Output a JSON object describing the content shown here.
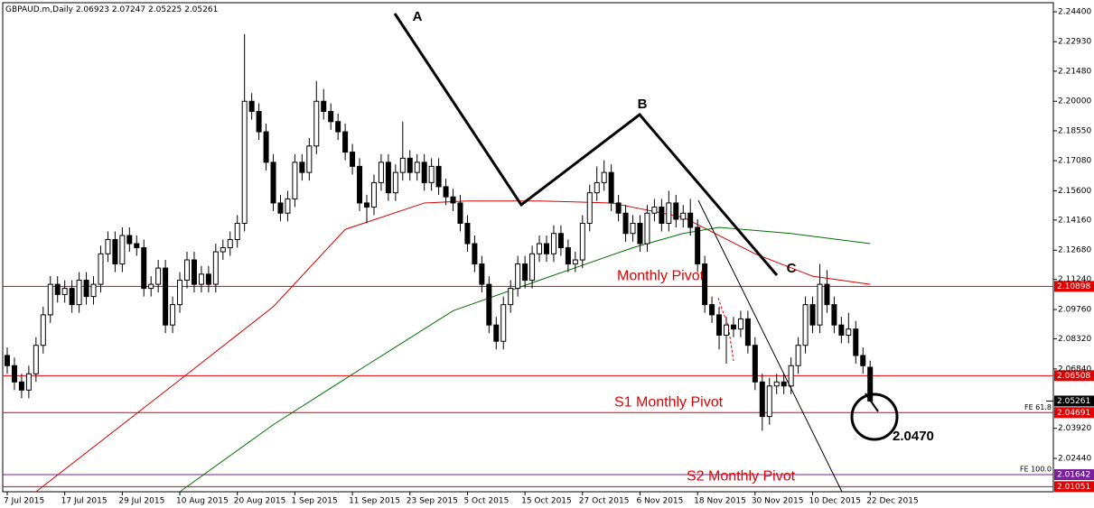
{
  "chart_data": {
    "type": "candlestick",
    "symbol": "GBPAUD.m,Daily",
    "ylim": [
      2.008,
      2.2498
    ],
    "yticks": [
      {
        "value": 2.244,
        "label": "2.24400"
      },
      {
        "value": 2.2293,
        "label": "2.22930"
      },
      {
        "value": 2.2148,
        "label": "2.21480"
      },
      {
        "value": 2.2,
        "label": "2.20000"
      },
      {
        "value": 2.1855,
        "label": "2.18550"
      },
      {
        "value": 2.1708,
        "label": "2.17080"
      },
      {
        "value": 2.156,
        "label": "2.15600"
      },
      {
        "value": 2.1416,
        "label": "2.14160"
      },
      {
        "value": 2.1268,
        "label": "2.12680"
      },
      {
        "value": 2.1124,
        "label": "2.11240"
      },
      {
        "value": 2.0976,
        "label": "2.09760"
      },
      {
        "value": 2.0832,
        "label": "2.08320"
      },
      {
        "value": 2.0684,
        "label": "2.06840"
      },
      {
        "value": 2.0392,
        "label": "2.03920"
      },
      {
        "value": 2.0244,
        "label": "2.02440"
      }
    ],
    "categories": [
      "7 Jul 2015",
      null,
      null,
      null,
      null,
      null,
      null,
      null,
      "17 Jul 2015",
      null,
      null,
      null,
      null,
      null,
      null,
      null,
      "29 Jul 2015",
      null,
      null,
      null,
      null,
      null,
      null,
      null,
      "10 Aug 2015",
      null,
      null,
      null,
      null,
      null,
      null,
      null,
      "20 Aug 2015",
      null,
      null,
      null,
      null,
      null,
      null,
      null,
      "1 Sep 2015",
      null,
      null,
      null,
      null,
      null,
      null,
      null,
      "11 Sep 2015",
      null,
      null,
      null,
      null,
      null,
      null,
      null,
      "23 Sep 2015",
      null,
      null,
      null,
      null,
      null,
      null,
      null,
      "5 Oct 2015",
      null,
      null,
      null,
      null,
      null,
      null,
      null,
      "15 Oct 2015",
      null,
      null,
      null,
      null,
      null,
      null,
      null,
      "27 Oct 2015",
      null,
      null,
      null,
      null,
      null,
      null,
      null,
      "6 Nov 2015",
      null,
      null,
      null,
      null,
      null,
      null,
      null,
      "18 Nov 2015",
      null,
      null,
      null,
      null,
      null,
      null,
      null,
      "30 Nov 2015",
      null,
      null,
      null,
      null,
      null,
      null,
      null,
      "10 Dec 2015",
      null,
      null,
      null,
      null,
      null,
      null,
      null,
      "22 Dec 2015"
    ],
    "candles": [
      [
        2.075,
        2.079,
        2.066,
        2.07
      ],
      [
        2.07,
        2.074,
        2.058,
        2.062
      ],
      [
        2.062,
        2.066,
        2.054,
        2.058
      ],
      [
        2.058,
        2.07,
        2.054,
        2.066
      ],
      [
        2.066,
        2.084,
        2.062,
        2.08
      ],
      [
        2.08,
        2.099,
        2.076,
        2.095
      ],
      [
        2.095,
        2.114,
        2.091,
        2.11
      ],
      [
        2.11,
        2.114,
        2.101,
        2.105
      ],
      [
        2.105,
        2.112,
        2.101,
        2.108
      ],
      [
        2.108,
        2.112,
        2.096,
        2.1
      ],
      [
        2.1,
        2.116,
        2.096,
        2.112
      ],
      [
        2.112,
        2.116,
        2.1,
        2.104
      ],
      [
        2.104,
        2.114,
        2.1,
        2.11
      ],
      [
        2.11,
        2.129,
        2.106,
        2.125
      ],
      [
        2.125,
        2.136,
        2.121,
        2.132
      ],
      [
        2.132,
        2.136,
        2.116,
        2.12
      ],
      [
        2.12,
        2.138,
        2.116,
        2.134
      ],
      [
        2.134,
        2.138,
        2.126,
        2.13
      ],
      [
        2.13,
        2.134,
        2.124,
        2.128
      ],
      [
        2.128,
        2.132,
        2.104,
        2.108
      ],
      [
        2.108,
        2.114,
        2.104,
        2.11
      ],
      [
        2.11,
        2.122,
        2.106,
        2.118
      ],
      [
        2.118,
        2.122,
        2.086,
        2.09
      ],
      [
        2.09,
        2.104,
        2.086,
        2.1
      ],
      [
        2.1,
        2.116,
        2.096,
        2.112
      ],
      [
        2.112,
        2.126,
        2.108,
        2.122
      ],
      [
        2.122,
        2.126,
        2.106,
        2.11
      ],
      [
        2.11,
        2.119,
        2.106,
        2.115
      ],
      [
        2.115,
        2.119,
        2.106,
        2.11
      ],
      [
        2.11,
        2.13,
        2.106,
        2.126
      ],
      [
        2.126,
        2.132,
        2.122,
        2.128
      ],
      [
        2.128,
        2.136,
        2.124,
        2.132
      ],
      [
        2.132,
        2.144,
        2.128,
        2.14
      ],
      [
        2.14,
        2.233,
        2.136,
        2.2
      ],
      [
        2.2,
        2.204,
        2.191,
        2.195
      ],
      [
        2.195,
        2.199,
        2.181,
        2.185
      ],
      [
        2.185,
        2.189,
        2.166,
        2.17
      ],
      [
        2.17,
        2.174,
        2.146,
        2.15
      ],
      [
        2.15,
        2.154,
        2.141,
        2.145
      ],
      [
        2.145,
        2.156,
        2.141,
        2.152
      ],
      [
        2.152,
        2.174,
        2.148,
        2.17
      ],
      [
        2.17,
        2.174,
        2.161,
        2.165
      ],
      [
        2.165,
        2.182,
        2.161,
        2.178
      ],
      [
        2.178,
        2.21,
        2.174,
        2.2
      ],
      [
        2.2,
        2.206,
        2.191,
        2.195
      ],
      [
        2.195,
        2.199,
        2.186,
        2.19
      ],
      [
        2.19,
        2.194,
        2.181,
        2.185
      ],
      [
        2.185,
        2.189,
        2.171,
        2.175
      ],
      [
        2.175,
        2.179,
        2.164,
        2.168
      ],
      [
        2.168,
        2.172,
        2.146,
        2.15
      ],
      [
        2.15,
        2.154,
        2.14,
        2.148
      ],
      [
        2.148,
        2.164,
        2.144,
        2.16
      ],
      [
        2.16,
        2.174,
        2.156,
        2.17
      ],
      [
        2.17,
        2.174,
        2.151,
        2.155
      ],
      [
        2.155,
        2.169,
        2.151,
        2.165
      ],
      [
        2.165,
        2.19,
        2.161,
        2.172
      ],
      [
        2.172,
        2.176,
        2.161,
        2.165
      ],
      [
        2.165,
        2.174,
        2.161,
        2.17
      ],
      [
        2.17,
        2.174,
        2.156,
        2.16
      ],
      [
        2.16,
        2.172,
        2.156,
        2.168
      ],
      [
        2.168,
        2.172,
        2.154,
        2.158
      ],
      [
        2.158,
        2.162,
        2.149,
        2.153
      ],
      [
        2.153,
        2.157,
        2.146,
        2.15
      ],
      [
        2.15,
        2.154,
        2.136,
        2.14
      ],
      [
        2.14,
        2.144,
        2.126,
        2.13
      ],
      [
        2.13,
        2.134,
        2.116,
        2.12
      ],
      [
        2.12,
        2.124,
        2.106,
        2.11
      ],
      [
        2.11,
        2.114,
        2.086,
        2.09
      ],
      [
        2.09,
        2.094,
        2.078,
        2.082
      ],
      [
        2.082,
        2.104,
        2.078,
        2.1
      ],
      [
        2.1,
        2.112,
        2.096,
        2.108
      ],
      [
        2.108,
        2.124,
        2.104,
        2.12
      ],
      [
        2.12,
        2.124,
        2.108,
        2.112
      ],
      [
        2.112,
        2.129,
        2.108,
        2.125
      ],
      [
        2.125,
        2.134,
        2.121,
        2.13
      ],
      [
        2.13,
        2.134,
        2.121,
        2.125
      ],
      [
        2.125,
        2.139,
        2.121,
        2.135
      ],
      [
        2.135,
        2.139,
        2.124,
        2.128
      ],
      [
        2.128,
        2.132,
        2.116,
        2.12
      ],
      [
        2.12,
        2.126,
        2.116,
        2.122
      ],
      [
        2.122,
        2.144,
        2.118,
        2.14
      ],
      [
        2.14,
        2.159,
        2.136,
        2.155
      ],
      [
        2.155,
        2.168,
        2.151,
        2.16
      ],
      [
        2.16,
        2.171,
        2.156,
        2.165
      ],
      [
        2.165,
        2.169,
        2.146,
        2.15
      ],
      [
        2.15,
        2.154,
        2.141,
        2.145
      ],
      [
        2.145,
        2.149,
        2.131,
        2.135
      ],
      [
        2.135,
        2.144,
        2.131,
        2.14
      ],
      [
        2.14,
        2.144,
        2.126,
        2.13
      ],
      [
        2.13,
        2.149,
        2.126,
        2.145
      ],
      [
        2.145,
        2.152,
        2.141,
        2.148
      ],
      [
        2.148,
        2.152,
        2.136,
        2.14
      ],
      [
        2.14,
        2.156,
        2.136,
        2.15
      ],
      [
        2.15,
        2.154,
        2.138,
        2.142
      ],
      [
        2.142,
        2.149,
        2.138,
        2.145
      ],
      [
        2.145,
        2.152,
        2.134,
        2.138
      ],
      [
        2.138,
        2.142,
        2.116,
        2.12
      ],
      [
        2.12,
        2.124,
        2.096,
        2.1
      ],
      [
        2.1,
        2.104,
        2.091,
        2.095
      ],
      [
        2.095,
        2.099,
        2.078,
        2.085
      ],
      [
        2.085,
        2.094,
        2.071,
        2.09
      ],
      [
        2.09,
        2.094,
        2.084,
        2.088
      ],
      [
        2.088,
        2.097,
        2.084,
        2.093
      ],
      [
        2.093,
        2.097,
        2.076,
        2.08
      ],
      [
        2.08,
        2.084,
        2.058,
        2.062
      ],
      [
        2.062,
        2.066,
        2.038,
        2.045
      ],
      [
        2.045,
        2.064,
        2.041,
        2.06
      ],
      [
        2.06,
        2.066,
        2.056,
        2.062
      ],
      [
        2.062,
        2.066,
        2.056,
        2.06
      ],
      [
        2.06,
        2.074,
        2.056,
        2.07
      ],
      [
        2.07,
        2.084,
        2.066,
        2.08
      ],
      [
        2.08,
        2.104,
        2.076,
        2.1
      ],
      [
        2.1,
        2.104,
        2.086,
        2.09
      ],
      [
        2.09,
        2.12,
        2.086,
        2.11
      ],
      [
        2.11,
        2.117,
        2.096,
        2.1
      ],
      [
        2.1,
        2.104,
        2.086,
        2.09
      ],
      [
        2.09,
        2.094,
        2.081,
        2.085
      ],
      [
        2.085,
        2.096,
        2.081,
        2.088
      ],
      [
        2.088,
        2.092,
        2.071,
        2.075
      ],
      [
        2.075,
        2.079,
        2.066,
        2.07
      ],
      [
        2.06923,
        2.07247,
        2.05225,
        2.05261
      ]
    ],
    "moving_averages": [
      {
        "color": "#d40000",
        "x": [
          4,
          24,
          37,
          47,
          58,
          64,
          74,
          84,
          94,
          104,
          112,
          120
        ],
        "values": [
          2.008,
          2.063,
          2.099,
          2.137,
          2.15,
          2.151,
          2.151,
          2.15,
          2.143,
          2.125,
          2.114,
          2.11
        ]
      },
      {
        "color": "#007000",
        "x": [
          24,
          37,
          49,
          62,
          74,
          87,
          94,
          99,
          109,
          120
        ],
        "values": [
          2.008,
          2.041,
          2.068,
          2.097,
          2.112,
          2.128,
          2.135,
          2.138,
          2.135,
          2.13
        ]
      }
    ],
    "levels": [
      {
        "value": 2.10898,
        "color": "#e00000",
        "text": "Monthly Pivot"
      },
      {
        "value": 2.06508,
        "color": "#e00000"
      },
      {
        "value": 2.04691,
        "color": "#e00000",
        "text": "S1 Monthly Pivot",
        "tag": "FE 61.8"
      },
      {
        "value": 2.01642,
        "color": "#7a1fa0",
        "tag": "FE 100.0"
      },
      {
        "value": 2.01051,
        "color": "#e00000",
        "text": "S2 Monthly Pivot"
      }
    ],
    "annotations": [
      "A",
      "B",
      "C",
      "2.0470"
    ]
  }
}
